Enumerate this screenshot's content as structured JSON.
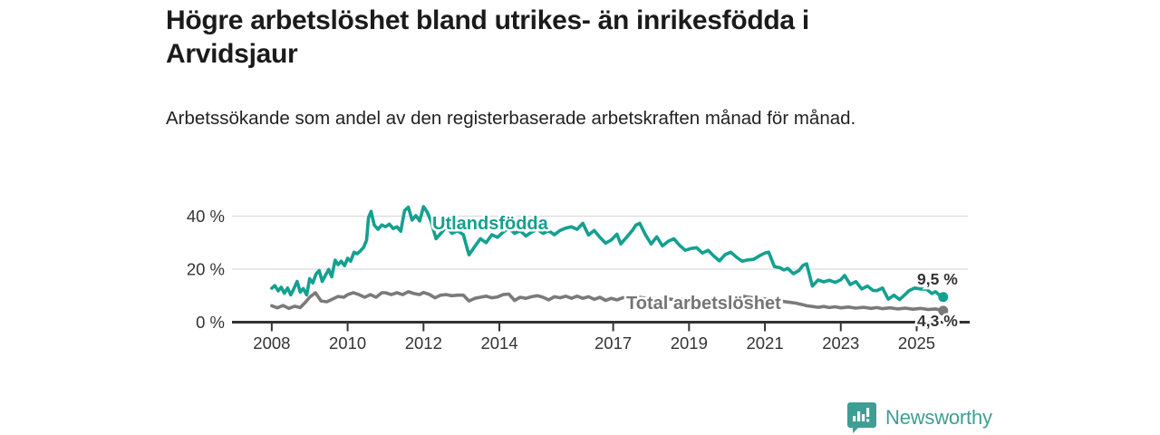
{
  "branding": {
    "name": "Newsworthy",
    "logo_color": "#3f9e93",
    "icon": "bar-chart-speech-bubble"
  },
  "chart_data": {
    "type": "line",
    "title": "Högre arbetslöshet bland utrikes- än inrikesfödda i Arvidsjaur",
    "subtitle": "Arbetssökande som andel av den registerbaserade arbetskraften månad för månad.",
    "xlabel": "",
    "ylabel": "",
    "grid": true,
    "legend_position": "inline-labels",
    "xlim": [
      2007,
      2026.35
    ],
    "ylim": [
      0,
      44
    ],
    "yticks": [
      {
        "value": 0,
        "label": "0 %"
      },
      {
        "value": 20,
        "label": "20 %"
      },
      {
        "value": 40,
        "label": "40 %"
      }
    ],
    "xticks": [
      {
        "value": 2008,
        "label": "2008"
      },
      {
        "value": 2010,
        "label": "2010"
      },
      {
        "value": 2012,
        "label": "2012"
      },
      {
        "value": 2014,
        "label": "2014"
      },
      {
        "value": 2017,
        "label": "2017"
      },
      {
        "value": 2019,
        "label": "2019"
      },
      {
        "value": 2021,
        "label": "2021"
      },
      {
        "value": 2023,
        "label": "2023"
      },
      {
        "value": 2025,
        "label": "2025"
      }
    ],
    "series": [
      {
        "name": "Utlandsfödda",
        "color": "#14a090",
        "end_label": "9,5 %",
        "end_value": 9.5,
        "points": [
          [
            2008.0,
            12.8
          ],
          [
            2008.08,
            13.8
          ],
          [
            2008.17,
            11.8
          ],
          [
            2008.25,
            13.2
          ],
          [
            2008.33,
            10.9
          ],
          [
            2008.42,
            12.9
          ],
          [
            2008.5,
            10.3
          ],
          [
            2008.58,
            12.5
          ],
          [
            2008.67,
            15.4
          ],
          [
            2008.75,
            11.3
          ],
          [
            2008.83,
            12.7
          ],
          [
            2008.92,
            10.3
          ],
          [
            2009.0,
            16.4
          ],
          [
            2009.08,
            14.8
          ],
          [
            2009.17,
            18.2
          ],
          [
            2009.25,
            19.5
          ],
          [
            2009.33,
            15.4
          ],
          [
            2009.42,
            17.8
          ],
          [
            2009.5,
            19.9
          ],
          [
            2009.58,
            17.1
          ],
          [
            2009.67,
            23.4
          ],
          [
            2009.75,
            21.7
          ],
          [
            2009.83,
            23.0
          ],
          [
            2009.92,
            21.3
          ],
          [
            2010.0,
            24.1
          ],
          [
            2010.08,
            23.0
          ],
          [
            2010.17,
            26.4
          ],
          [
            2010.25,
            25.8
          ],
          [
            2010.33,
            26.8
          ],
          [
            2010.42,
            28.2
          ],
          [
            2010.5,
            30.9
          ],
          [
            2010.55,
            39.4
          ],
          [
            2010.62,
            41.8
          ],
          [
            2010.7,
            36.7
          ],
          [
            2010.8,
            35.0
          ],
          [
            2010.9,
            36.7
          ],
          [
            2011.0,
            36.0
          ],
          [
            2011.1,
            37.0
          ],
          [
            2011.2,
            35.3
          ],
          [
            2011.3,
            36.0
          ],
          [
            2011.4,
            34.3
          ],
          [
            2011.5,
            42.1
          ],
          [
            2011.6,
            43.4
          ],
          [
            2011.7,
            38.5
          ],
          [
            2011.8,
            40.2
          ],
          [
            2011.9,
            38.2
          ],
          [
            2012.0,
            43.6
          ],
          [
            2012.1,
            41.5
          ],
          [
            2012.2,
            38.0
          ],
          [
            2012.33,
            31.5
          ],
          [
            2012.5,
            34.2
          ],
          [
            2012.6,
            36.0
          ],
          [
            2012.75,
            33.5
          ],
          [
            2012.9,
            34.5
          ],
          [
            2013.05,
            33.0
          ],
          [
            2013.2,
            25.4
          ],
          [
            2013.35,
            28.5
          ],
          [
            2013.5,
            31.5
          ],
          [
            2013.65,
            30.0
          ],
          [
            2013.8,
            33.0
          ],
          [
            2013.95,
            32.0
          ],
          [
            2014.1,
            34.0
          ],
          [
            2014.25,
            35.5
          ],
          [
            2014.4,
            33.5
          ],
          [
            2014.55,
            34.5
          ],
          [
            2014.7,
            32.5
          ],
          [
            2014.85,
            34.0
          ],
          [
            2015.0,
            35.0
          ],
          [
            2015.15,
            33.5
          ],
          [
            2015.3,
            34.5
          ],
          [
            2015.45,
            33.0
          ],
          [
            2015.6,
            34.6
          ],
          [
            2015.75,
            35.5
          ],
          [
            2015.9,
            36.0
          ],
          [
            2016.05,
            35.0
          ],
          [
            2016.2,
            37.3
          ],
          [
            2016.35,
            32.9
          ],
          [
            2016.5,
            34.6
          ],
          [
            2016.65,
            32.0
          ],
          [
            2016.8,
            29.8
          ],
          [
            2016.95,
            31.0
          ],
          [
            2017.1,
            33.2
          ],
          [
            2017.2,
            29.5
          ],
          [
            2017.35,
            32.0
          ],
          [
            2017.5,
            34.5
          ],
          [
            2017.6,
            36.6
          ],
          [
            2017.7,
            37.3
          ],
          [
            2017.85,
            33.0
          ],
          [
            2018.0,
            29.5
          ],
          [
            2018.15,
            32.2
          ],
          [
            2018.3,
            28.8
          ],
          [
            2018.45,
            30.5
          ],
          [
            2018.6,
            31.5
          ],
          [
            2018.75,
            29.0
          ],
          [
            2018.9,
            27.1
          ],
          [
            2019.05,
            27.8
          ],
          [
            2019.2,
            28.1
          ],
          [
            2019.35,
            26.1
          ],
          [
            2019.5,
            27.1
          ],
          [
            2019.65,
            25.0
          ],
          [
            2019.8,
            23.1
          ],
          [
            2019.95,
            25.5
          ],
          [
            2020.1,
            26.4
          ],
          [
            2020.25,
            24.5
          ],
          [
            2020.4,
            23.0
          ],
          [
            2020.55,
            23.5
          ],
          [
            2020.7,
            23.7
          ],
          [
            2020.85,
            25.0
          ],
          [
            2021.0,
            26.1
          ],
          [
            2021.1,
            26.4
          ],
          [
            2021.25,
            21.0
          ],
          [
            2021.4,
            20.5
          ],
          [
            2021.5,
            19.7
          ],
          [
            2021.6,
            20.3
          ],
          [
            2021.75,
            18.3
          ],
          [
            2021.9,
            19.5
          ],
          [
            2022.0,
            21.4
          ],
          [
            2022.1,
            22.0
          ],
          [
            2022.25,
            13.6
          ],
          [
            2022.4,
            15.9
          ],
          [
            2022.55,
            15.2
          ],
          [
            2022.7,
            15.8
          ],
          [
            2022.85,
            15.0
          ],
          [
            2023.0,
            16.0
          ],
          [
            2023.1,
            17.6
          ],
          [
            2023.25,
            14.2
          ],
          [
            2023.4,
            15.3
          ],
          [
            2023.55,
            12.5
          ],
          [
            2023.7,
            13.6
          ],
          [
            2023.85,
            12.0
          ],
          [
            2023.95,
            11.9
          ],
          [
            2024.1,
            12.9
          ],
          [
            2024.25,
            8.7
          ],
          [
            2024.4,
            10.2
          ],
          [
            2024.55,
            8.5
          ],
          [
            2024.7,
            10.5
          ],
          [
            2024.8,
            11.9
          ],
          [
            2024.95,
            12.9
          ],
          [
            2025.1,
            12.5
          ],
          [
            2025.25,
            12.5
          ],
          [
            2025.4,
            10.8
          ],
          [
            2025.5,
            11.5
          ],
          [
            2025.6,
            10.2
          ],
          [
            2025.7,
            9.5
          ]
        ]
      },
      {
        "name": "Total arbetslöshet",
        "color": "#7a7a7a",
        "end_label": "4,3 %",
        "end_value": 4.3,
        "points": [
          [
            2008.0,
            6.2
          ],
          [
            2008.15,
            5.4
          ],
          [
            2008.3,
            6.3
          ],
          [
            2008.45,
            5.2
          ],
          [
            2008.6,
            6.0
          ],
          [
            2008.75,
            5.5
          ],
          [
            2008.9,
            7.7
          ],
          [
            2009.0,
            9.4
          ],
          [
            2009.15,
            11.1
          ],
          [
            2009.3,
            8.0
          ],
          [
            2009.45,
            7.7
          ],
          [
            2009.6,
            8.7
          ],
          [
            2009.75,
            9.7
          ],
          [
            2009.9,
            9.4
          ],
          [
            2010.0,
            10.4
          ],
          [
            2010.15,
            11.1
          ],
          [
            2010.3,
            10.4
          ],
          [
            2010.45,
            9.4
          ],
          [
            2010.6,
            10.4
          ],
          [
            2010.75,
            9.4
          ],
          [
            2010.9,
            11.1
          ],
          [
            2011.0,
            11.1
          ],
          [
            2011.15,
            10.4
          ],
          [
            2011.3,
            11.1
          ],
          [
            2011.45,
            10.4
          ],
          [
            2011.6,
            11.5
          ],
          [
            2011.75,
            10.8
          ],
          [
            2011.9,
            10.4
          ],
          [
            2012.0,
            11.2
          ],
          [
            2012.15,
            10.5
          ],
          [
            2012.3,
            9.2
          ],
          [
            2012.45,
            10.2
          ],
          [
            2012.6,
            10.4
          ],
          [
            2012.75,
            10.0
          ],
          [
            2012.9,
            10.2
          ],
          [
            2013.05,
            10.2
          ],
          [
            2013.2,
            8.0
          ],
          [
            2013.35,
            9.0
          ],
          [
            2013.5,
            9.4
          ],
          [
            2013.65,
            9.8
          ],
          [
            2013.8,
            9.2
          ],
          [
            2013.95,
            9.5
          ],
          [
            2014.1,
            10.4
          ],
          [
            2014.25,
            10.6
          ],
          [
            2014.4,
            8.2
          ],
          [
            2014.55,
            9.4
          ],
          [
            2014.7,
            9.0
          ],
          [
            2014.85,
            9.6
          ],
          [
            2015.0,
            10.0
          ],
          [
            2015.15,
            9.4
          ],
          [
            2015.3,
            8.4
          ],
          [
            2015.45,
            9.6
          ],
          [
            2015.6,
            9.2
          ],
          [
            2015.75,
            9.8
          ],
          [
            2015.9,
            9.0
          ],
          [
            2016.05,
            9.8
          ],
          [
            2016.2,
            9.0
          ],
          [
            2016.35,
            9.6
          ],
          [
            2016.5,
            8.6
          ],
          [
            2016.65,
            9.4
          ],
          [
            2016.8,
            8.2
          ],
          [
            2016.95,
            9.0
          ],
          [
            2017.1,
            8.4
          ],
          [
            2017.25,
            9.2
          ],
          [
            2017.4,
            9.6
          ],
          [
            2017.55,
            8.8
          ],
          [
            2017.7,
            9.4
          ],
          [
            2017.85,
            9.0
          ],
          [
            2018.0,
            9.2
          ],
          [
            2018.2,
            8.6
          ],
          [
            2018.4,
            9.0
          ],
          [
            2018.6,
            8.4
          ],
          [
            2018.8,
            8.8
          ],
          [
            2019.0,
            8.2
          ],
          [
            2019.2,
            8.6
          ],
          [
            2019.4,
            8.0
          ],
          [
            2019.6,
            8.4
          ],
          [
            2019.8,
            8.0
          ],
          [
            2020.0,
            8.6
          ],
          [
            2020.2,
            9.4
          ],
          [
            2020.4,
            9.8
          ],
          [
            2020.6,
            9.4
          ],
          [
            2020.8,
            9.0
          ],
          [
            2021.0,
            8.8
          ],
          [
            2021.2,
            8.4
          ],
          [
            2021.4,
            8.0
          ],
          [
            2021.6,
            7.6
          ],
          [
            2021.8,
            7.2
          ],
          [
            2022.0,
            6.6
          ],
          [
            2022.1,
            6.2
          ],
          [
            2022.25,
            5.9
          ],
          [
            2022.4,
            5.6
          ],
          [
            2022.55,
            5.9
          ],
          [
            2022.7,
            5.5
          ],
          [
            2022.85,
            5.8
          ],
          [
            2023.0,
            5.4
          ],
          [
            2023.2,
            5.7
          ],
          [
            2023.4,
            5.3
          ],
          [
            2023.6,
            5.6
          ],
          [
            2023.8,
            5.2
          ],
          [
            2023.95,
            5.5
          ],
          [
            2024.1,
            5.1
          ],
          [
            2024.3,
            5.4
          ],
          [
            2024.5,
            5.0
          ],
          [
            2024.7,
            5.3
          ],
          [
            2024.9,
            4.9
          ],
          [
            2025.1,
            5.2
          ],
          [
            2025.3,
            4.8
          ],
          [
            2025.5,
            5.0
          ],
          [
            2025.7,
            4.3
          ]
        ]
      }
    ]
  }
}
